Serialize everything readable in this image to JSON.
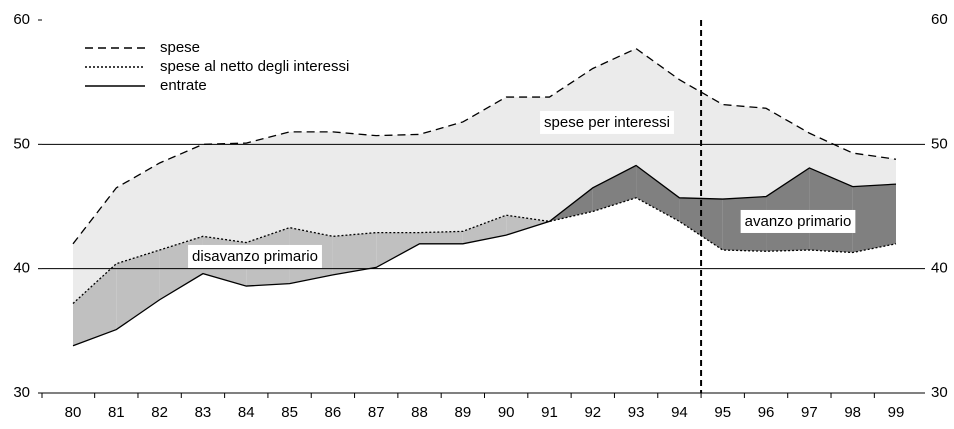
{
  "chart_data": {
    "type": "line",
    "categories": [
      "80",
      "81",
      "82",
      "83",
      "84",
      "85",
      "86",
      "87",
      "88",
      "89",
      "90",
      "91",
      "92",
      "93",
      "94",
      "95",
      "96",
      "97",
      "98",
      "99"
    ],
    "series": [
      {
        "name": "spese",
        "color": "#000000",
        "dash": "dashed",
        "values": [
          42,
          46.5,
          48.5,
          50,
          50.1,
          51,
          51,
          50.7,
          50.8,
          51.8,
          53.8,
          53.8,
          56.1,
          57.7,
          55.2,
          53.2,
          52.9,
          50.9,
          49.3,
          48.8
        ]
      },
      {
        "name": "spese al netto degli interessi",
        "color": "#000000",
        "dash": "dotted",
        "values": [
          37.2,
          40.4,
          41.5,
          42.6,
          42.1,
          43.3,
          42.6,
          42.9,
          42.9,
          43.0,
          44.3,
          43.8,
          44.6,
          45.7,
          43.8,
          41.5,
          41.4,
          41.5,
          41.3,
          42.0
        ]
      },
      {
        "name": "entrate",
        "color": "#000000",
        "dash": "solid",
        "values": [
          33.8,
          35.1,
          37.5,
          39.6,
          38.6,
          38.8,
          39.5,
          40.1,
          42.0,
          42.0,
          42.7,
          43.8,
          46.5,
          48.3,
          45.7,
          45.6,
          45.8,
          48.1,
          46.6,
          46.8
        ]
      }
    ],
    "fills": [
      "#ebebeb",
      "#c0c0c0",
      "#808080"
    ],
    "annotations": [
      "spese per interessi",
      "disavanzo primario",
      "avanzo primario"
    ],
    "ylim": [
      30,
      60
    ],
    "yticks": [
      30,
      40,
      50,
      60
    ],
    "grid": true,
    "legend": "upper left"
  }
}
